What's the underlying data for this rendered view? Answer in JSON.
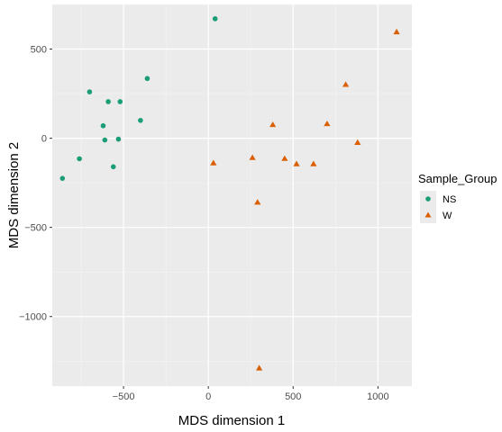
{
  "chart_data": {
    "type": "scatter",
    "title": "",
    "xlabel": "MDS dimension 1",
    "ylabel": "MDS dimension 2",
    "xlim": [
      -920,
      1200
    ],
    "ylim": [
      -1390,
      750
    ],
    "x_ticks": [
      -500,
      0,
      500,
      1000
    ],
    "x_tick_labels": [
      "−500",
      "0",
      "500",
      "1000"
    ],
    "y_ticks": [
      500,
      0,
      -500,
      -1000
    ],
    "y_tick_labels": [
      "500",
      "0",
      "−500",
      "−1000"
    ],
    "grid": true,
    "legend": {
      "title": "Sample_Group",
      "position": "right"
    },
    "series": [
      {
        "name": "NS",
        "marker": "circle",
        "color": "#1b9e77",
        "points": [
          [
            40,
            670
          ],
          [
            -700,
            260
          ],
          [
            -590,
            205
          ],
          [
            -520,
            205
          ],
          [
            -360,
            335
          ],
          [
            -400,
            100
          ],
          [
            -620,
            70
          ],
          [
            -610,
            -10
          ],
          [
            -530,
            -5
          ],
          [
            -760,
            -115
          ],
          [
            -560,
            -160
          ],
          [
            -860,
            -225
          ]
        ]
      },
      {
        "name": "W",
        "marker": "triangle",
        "color": "#d95f02",
        "points": [
          [
            1110,
            595
          ],
          [
            810,
            300
          ],
          [
            380,
            75
          ],
          [
            700,
            80
          ],
          [
            880,
            -25
          ],
          [
            30,
            -140
          ],
          [
            260,
            -110
          ],
          [
            450,
            -115
          ],
          [
            520,
            -145
          ],
          [
            620,
            -145
          ],
          [
            290,
            -360
          ],
          [
            300,
            -1290
          ]
        ]
      }
    ]
  }
}
